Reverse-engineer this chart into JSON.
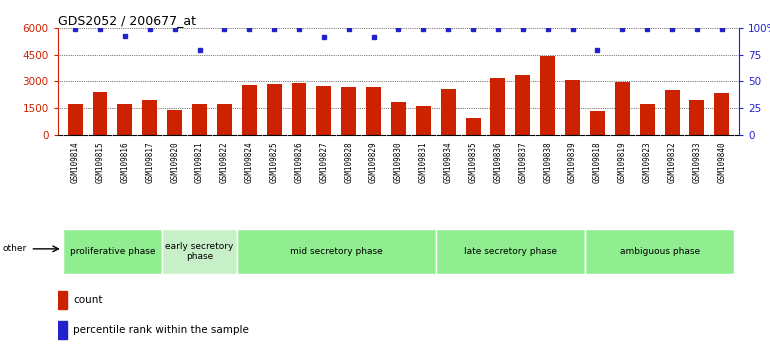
{
  "title": "GDS2052 / 200677_at",
  "samples": [
    "GSM109814",
    "GSM109815",
    "GSM109816",
    "GSM109817",
    "GSM109820",
    "GSM109821",
    "GSM109822",
    "GSM109824",
    "GSM109825",
    "GSM109826",
    "GSM109827",
    "GSM109828",
    "GSM109829",
    "GSM109830",
    "GSM109831",
    "GSM109834",
    "GSM109835",
    "GSM109836",
    "GSM109837",
    "GSM109838",
    "GSM109839",
    "GSM109818",
    "GSM109819",
    "GSM109823",
    "GSM109832",
    "GSM109833",
    "GSM109840"
  ],
  "counts": [
    1700,
    2400,
    1750,
    1950,
    1400,
    1700,
    1700,
    2800,
    2850,
    2900,
    2750,
    2700,
    2700,
    1850,
    1600,
    2550,
    950,
    3200,
    3350,
    4450,
    3100,
    1350,
    2950,
    1700,
    2500,
    1950,
    2350
  ],
  "percentile_ranks": [
    99,
    99,
    93,
    99,
    99,
    80,
    99,
    99,
    99,
    99,
    92,
    99,
    92,
    99,
    99,
    99,
    99,
    99,
    99,
    99,
    99,
    80,
    99,
    99,
    99,
    99,
    99
  ],
  "phases": [
    {
      "name": "proliferative phase",
      "start": 0,
      "end": 4,
      "color": "#90EE90"
    },
    {
      "name": "early secretory\nphase",
      "start": 4,
      "end": 7,
      "color": "#c8f0c8"
    },
    {
      "name": "mid secretory phase",
      "start": 7,
      "end": 15,
      "color": "#90EE90"
    },
    {
      "name": "late secretory phase",
      "start": 15,
      "end": 21,
      "color": "#90EE90"
    },
    {
      "name": "ambiguous phase",
      "start": 21,
      "end": 27,
      "color": "#90EE90"
    }
  ],
  "bar_color": "#cc2200",
  "dot_color": "#2222cc",
  "left_ylim": [
    0,
    6000
  ],
  "right_ylim": [
    0,
    100
  ],
  "left_yticks": [
    0,
    1500,
    3000,
    4500,
    6000
  ],
  "right_yticks": [
    0,
    25,
    50,
    75,
    100
  ],
  "bg_color": "#ffffff",
  "plot_bg": "#ffffff"
}
